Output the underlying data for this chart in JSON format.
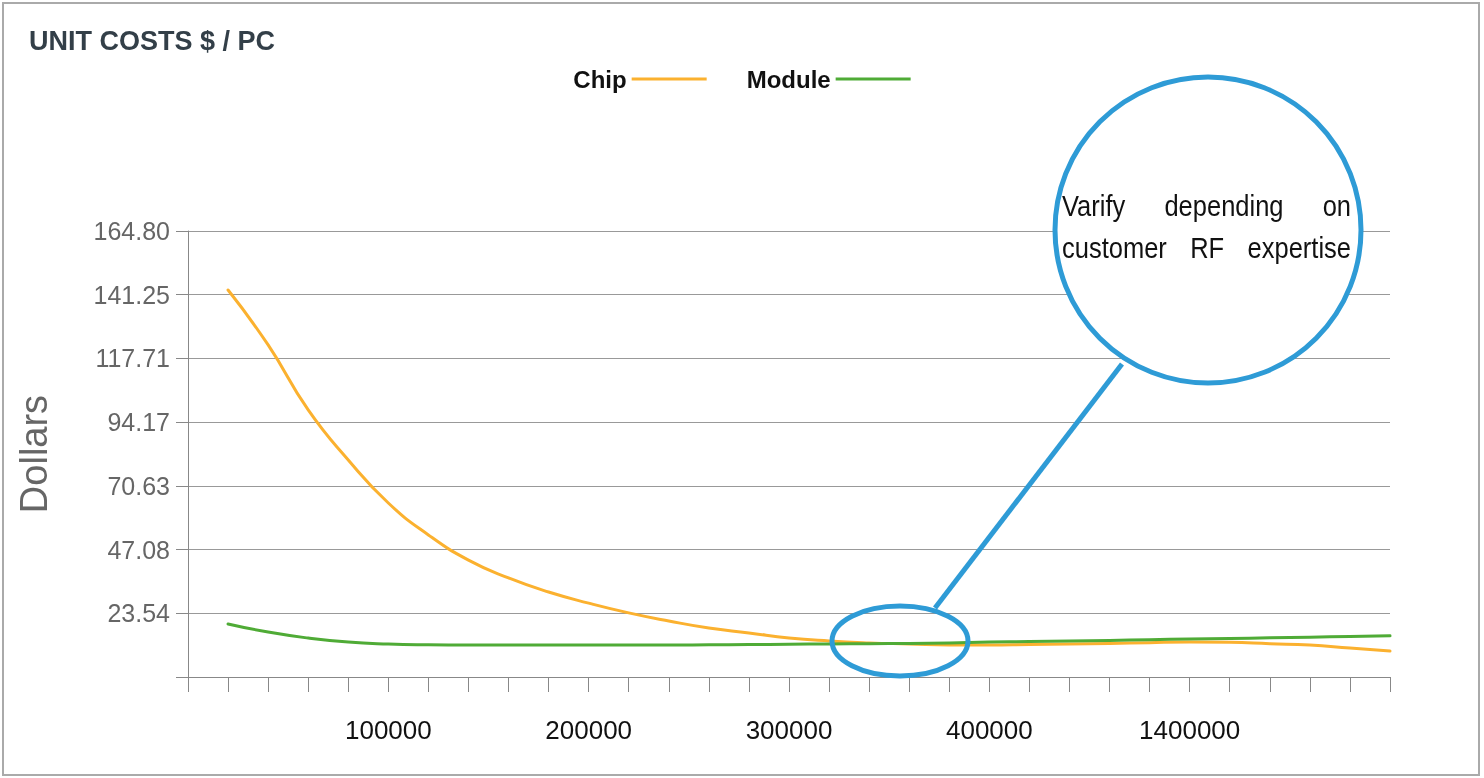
{
  "chart_data": {
    "type": "line",
    "title": "UNIT COSTS $ / PC",
    "ylabel": "Dollars",
    "categories": [
      null,
      null,
      null,
      null,
      null,
      "100000",
      null,
      null,
      null,
      null,
      "200000",
      null,
      null,
      null,
      null,
      "300000",
      null,
      null,
      null,
      null,
      "400000",
      null,
      null,
      null,
      null,
      "1400000",
      null,
      null,
      null,
      null,
      null
    ],
    "series": [
      {
        "name": "Chip",
        "color": "#fbb12f",
        "values": [
          null,
          143,
          122.7,
          98.7,
          80.2,
          64.3,
          52.5,
          43.2,
          36.6,
          31.4,
          27.3,
          23.7,
          20.7,
          18.1,
          16.3,
          14.4,
          13.3,
          12.6,
          12.2,
          11.8,
          11.8,
          12,
          12.2,
          12.4,
          12.7,
          12.9,
          12.8,
          12.3,
          11.8,
          10.7,
          9.6
        ]
      },
      {
        "name": "Module",
        "color": "#4fab36",
        "values": [
          null,
          19.6,
          16.6,
          14.4,
          12.9,
          12.2,
          11.9,
          11.8,
          11.8,
          11.8,
          11.8,
          11.8,
          11.8,
          11.9,
          12,
          12.1,
          12.2,
          12.3,
          12.4,
          12.6,
          12.9,
          13.1,
          13.3,
          13.5,
          13.8,
          14,
          14.2,
          14.5,
          14.7,
          15,
          15.2
        ]
      }
    ],
    "ylim": [
      0,
      164.8
    ],
    "yticks": [
      {
        "value": 0,
        "label": null
      },
      23.54,
      47.08,
      70.63,
      94.17,
      117.71,
      141.25,
      {
        "value": 164.8,
        "label": "164.80"
      }
    ],
    "grid": "y",
    "legend": "top",
    "marker": "none",
    "line_style": "solid",
    "annotations": [
      "Varify depending on customer RF expertise"
    ]
  }
}
